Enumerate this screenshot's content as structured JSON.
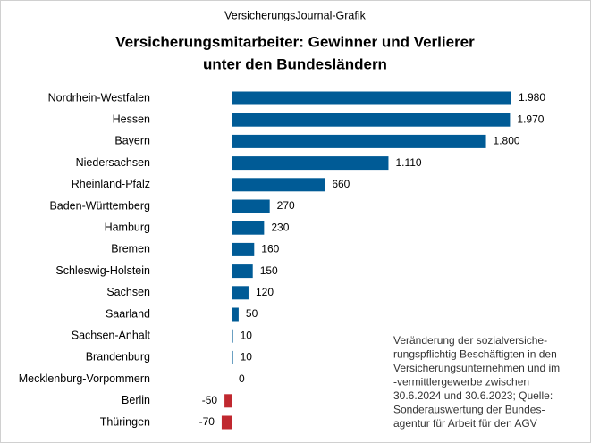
{
  "chart_data": {
    "type": "barh",
    "source": "VersicherungsJournal-Grafik",
    "title": [
      "Versicherungsmitarbeiter:  Gewinner und Verlierer",
      "unter den Bundesländern"
    ],
    "categories": [
      "Nordrhein-Westfalen",
      "Hessen",
      "Bayern",
      "Niedersachsen",
      "Rheinland-Pfalz",
      "Baden-Württemberg",
      "Hamburg",
      "Bremen",
      "Schleswig-Holstein",
      "Sachsen",
      "Saarland",
      "Sachsen-Anhalt",
      "Brandenburg",
      "Mecklenburg-Vorpommern",
      "Berlin",
      "Thüringen"
    ],
    "values": [
      1980,
      1970,
      1800,
      1110,
      660,
      270,
      230,
      160,
      150,
      120,
      50,
      10,
      10,
      0,
      -50,
      -70
    ],
    "value_labels": [
      "1.980",
      "1.970",
      "1.800",
      "1.110",
      "660",
      "270",
      "230",
      "160",
      "150",
      "120",
      "50",
      "10",
      "10",
      "0",
      "-50",
      "-70"
    ],
    "color": "#005b96",
    "negative_color": "#c0282f",
    "annotation": [
      "Veränderung  der  sozialversiche-",
      "rungspflichtig  Beschäftigten  in den",
      "Versicherungsunternehmen  und im",
      "-vermittlergewerbe    zwischen",
      "30.6.2024  und 30.6.2023;  Quelle:",
      "Sonderauswertung    der   Bundes-",
      "agentur  für  Arbeit  für  den  AGV"
    ]
  }
}
